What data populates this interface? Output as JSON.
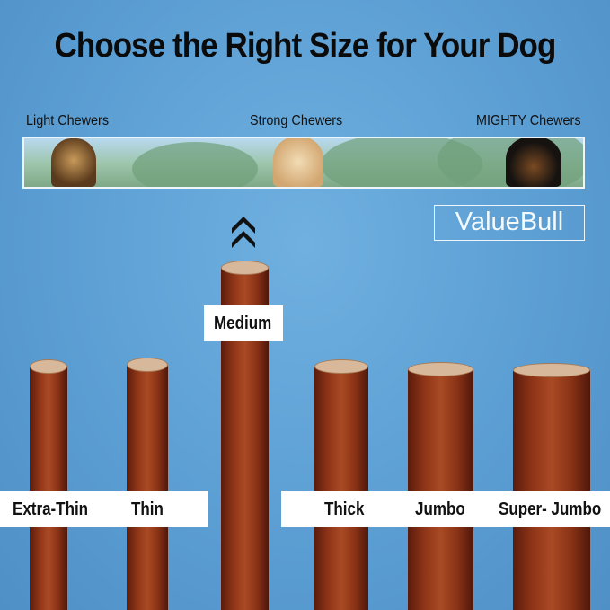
{
  "title": "Choose the Right Size for Your Dog",
  "chewer_levels": [
    "Light Chewers",
    "Strong Chewers",
    "MIGHTY Chewers"
  ],
  "brand": "ValueBull",
  "sizes": [
    "Extra-Thin",
    "Thin",
    "Medium",
    "Thick",
    "Jumbo",
    "Super- Jumbo"
  ],
  "highlighted_size": "Medium",
  "colors": {
    "background": "#5a9dd2",
    "stick": "#8e3417",
    "label_bg": "#ffffff"
  }
}
